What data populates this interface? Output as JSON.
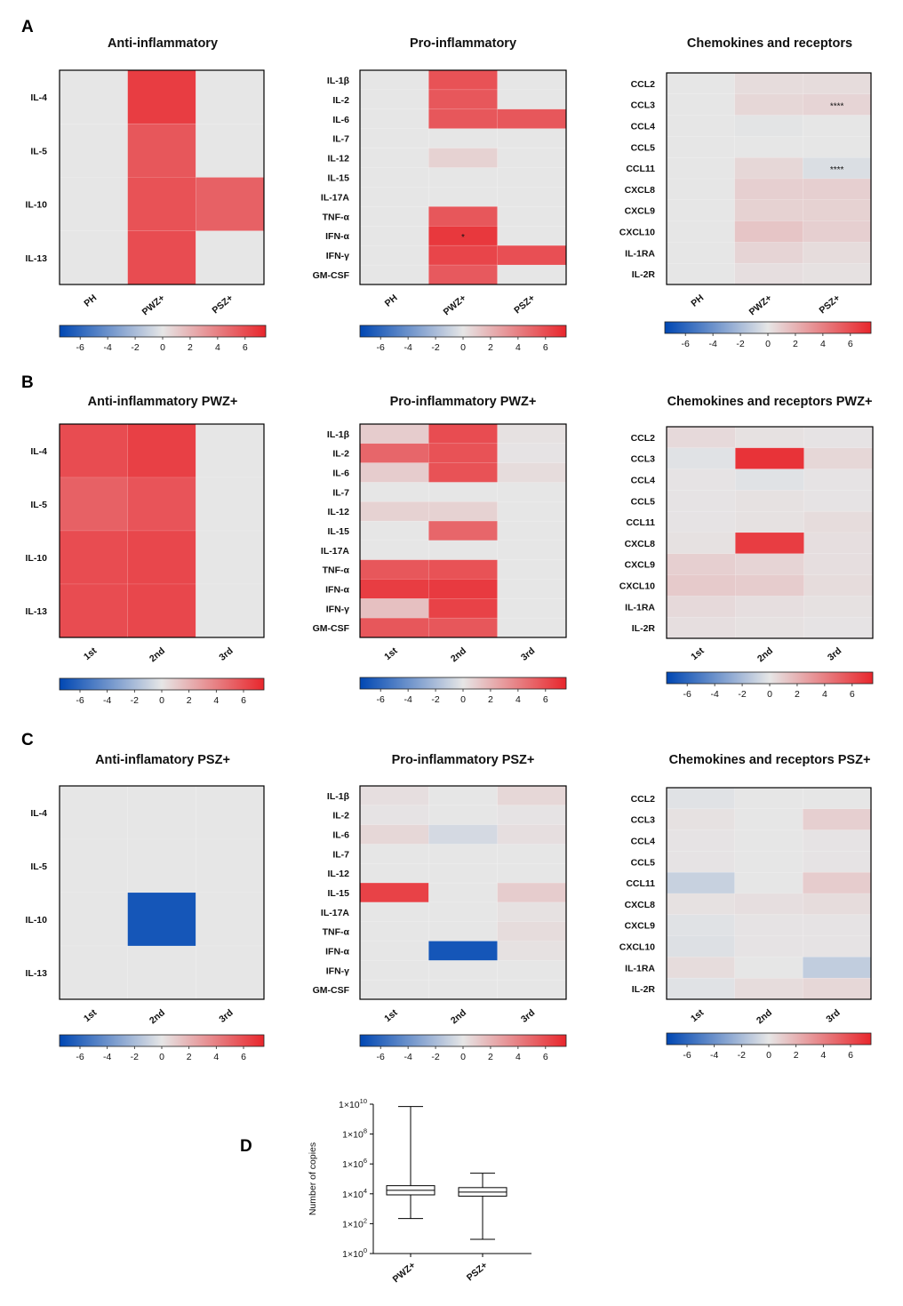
{
  "panel_labels": [
    "A",
    "B",
    "C",
    "D"
  ],
  "colorbar_ticks": [
    "-6",
    "-4",
    "-2",
    "0",
    "2",
    "4",
    "6"
  ],
  "colorscale": {
    "min": -7.5,
    "max": 7.5,
    "low": "#0047b3",
    "mid": "#e6e6e6",
    "high": "#e8262c"
  },
  "chart_data": [
    {
      "type": "heatmap",
      "panel": "A",
      "title": "Anti-inflammatory",
      "rows": [
        "IL-4",
        "IL-5",
        "IL-10",
        "IL-13"
      ],
      "columns": [
        "PH",
        "PWZ+",
        "PSZ+"
      ],
      "values": [
        [
          0,
          6.6,
          0
        ],
        [
          0,
          5.6,
          0
        ],
        [
          0,
          5.8,
          5.2
        ],
        [
          0,
          6.0,
          0
        ]
      ],
      "annotations": []
    },
    {
      "type": "heatmap",
      "panel": "A",
      "title": "Pro-inflammatory",
      "rows": [
        "IL-1β",
        "IL-2",
        "IL-6",
        "IL-7",
        "IL-12",
        "IL-15",
        "IL-17A",
        "TNF-α",
        "IFN-α",
        "IFN-γ",
        "GM-CSF"
      ],
      "columns": [
        "PH",
        "PWZ+",
        "PSZ+"
      ],
      "values": [
        [
          0,
          5.8,
          0
        ],
        [
          0,
          5.6,
          0
        ],
        [
          0,
          5.6,
          5.6
        ],
        [
          0,
          0,
          0
        ],
        [
          0,
          0.8,
          0
        ],
        [
          0,
          0,
          0
        ],
        [
          0,
          0,
          0
        ],
        [
          0,
          5.6,
          0
        ],
        [
          0,
          6.8,
          0
        ],
        [
          0,
          6.3,
          5.9
        ],
        [
          0,
          5.5,
          0
        ]
      ],
      "annotations": [
        {
          "row": 8,
          "col": 1,
          "text": "*"
        }
      ]
    },
    {
      "type": "heatmap",
      "panel": "A",
      "title": "Chemokines and receptors",
      "rows": [
        "CCL2",
        "CCL3",
        "CCL4",
        "CCL5",
        "CCL11",
        "CXCL8",
        "CXCL9",
        "CXCL10",
        "IL-1RA",
        "IL-2R"
      ],
      "columns": [
        "PH",
        "PWZ+",
        "PSZ+"
      ],
      "values": [
        [
          0,
          0.4,
          0.4
        ],
        [
          0,
          0.6,
          0.7
        ],
        [
          0,
          -0.1,
          0
        ],
        [
          0,
          0,
          0
        ],
        [
          0,
          0.6,
          -0.4
        ],
        [
          0,
          0.9,
          0.9
        ],
        [
          0,
          0.8,
          0.8
        ],
        [
          0,
          1.3,
          0.9
        ],
        [
          0,
          0.7,
          0.4
        ],
        [
          0,
          0.3,
          0.2
        ]
      ],
      "annotations": [
        {
          "row": 1,
          "col": 2,
          "text": "****"
        },
        {
          "row": 4,
          "col": 2,
          "text": "****"
        }
      ]
    },
    {
      "type": "heatmap",
      "panel": "B",
      "title": "Anti-inflammatory PWZ+",
      "rows": [
        "IL-4",
        "IL-5",
        "IL-10",
        "IL-13"
      ],
      "columns": [
        "1st",
        "2nd",
        "3rd"
      ],
      "values": [
        [
          6.0,
          6.5,
          0
        ],
        [
          5.2,
          5.7,
          0
        ],
        [
          6.0,
          6.2,
          0
        ],
        [
          6.0,
          6.2,
          0
        ]
      ],
      "annotations": []
    },
    {
      "type": "heatmap",
      "panel": "B",
      "title": "Pro-inflammatory PWZ+",
      "rows": [
        "IL-1β",
        "IL-2",
        "IL-6",
        "IL-7",
        "IL-12",
        "IL-15",
        "IL-17A",
        "TNF-α",
        "IFN-α",
        "IFN-γ",
        "GM-CSF"
      ],
      "columns": [
        "1st",
        "2nd",
        "3rd"
      ],
      "values": [
        [
          1.0,
          6.0,
          0.2
        ],
        [
          5.0,
          5.8,
          0.1
        ],
        [
          1.0,
          5.8,
          0.4
        ],
        [
          0,
          0,
          0
        ],
        [
          0.8,
          0.8,
          0
        ],
        [
          0,
          5.0,
          0
        ],
        [
          0,
          0,
          0
        ],
        [
          5.6,
          5.8,
          0
        ],
        [
          6.6,
          6.7,
          0
        ],
        [
          1.5,
          6.4,
          0
        ],
        [
          5.6,
          5.6,
          0
        ]
      ],
      "annotations": []
    },
    {
      "type": "heatmap",
      "panel": "B",
      "title": "Chemokines and receptors PWZ+",
      "rows": [
        "CCL2",
        "CCL3",
        "CCL4",
        "CCL5",
        "CCL11",
        "CXCL8",
        "CXCL9",
        "CXCL10",
        "IL-1RA",
        "IL-2R"
      ],
      "columns": [
        "1st",
        "2nd",
        "3rd"
      ],
      "values": [
        [
          0.5,
          0.2,
          0.1
        ],
        [
          -0.2,
          7.0,
          0.6
        ],
        [
          0.1,
          -0.2,
          0.1
        ],
        [
          0.1,
          0.2,
          0.1
        ],
        [
          0.1,
          0.2,
          0.4
        ],
        [
          0.2,
          6.6,
          0.3
        ],
        [
          0.9,
          0.7,
          0.3
        ],
        [
          1.1,
          1.0,
          0.4
        ],
        [
          0.5,
          0.3,
          0.2
        ],
        [
          0.3,
          0.2,
          0.1
        ]
      ],
      "annotations": []
    },
    {
      "type": "heatmap",
      "panel": "C",
      "title": "Anti-inflamatory PSZ+",
      "rows": [
        "IL-4",
        "IL-5",
        "IL-10",
        "IL-13"
      ],
      "columns": [
        "1st",
        "2nd",
        "3rd"
      ],
      "values": [
        [
          0,
          0,
          0
        ],
        [
          0,
          0,
          0
        ],
        [
          0,
          -6.8,
          0
        ],
        [
          0,
          0,
          0
        ]
      ],
      "annotations": []
    },
    {
      "type": "heatmap",
      "panel": "C",
      "title": "Pro-inflammatory PSZ+",
      "rows": [
        "IL-1β",
        "IL-2",
        "IL-6",
        "IL-7",
        "IL-12",
        "IL-15",
        "IL-17A",
        "TNF-α",
        "IFN-α",
        "IFN-γ",
        "GM-CSF"
      ],
      "columns": [
        "1st",
        "2nd",
        "3rd"
      ],
      "values": [
        [
          0.3,
          0,
          0.6
        ],
        [
          0.1,
          0,
          0.1
        ],
        [
          0.6,
          -0.6,
          0.3
        ],
        [
          0,
          0,
          0
        ],
        [
          0,
          0,
          0
        ],
        [
          6.4,
          0,
          1.0
        ],
        [
          0,
          0,
          0.2
        ],
        [
          0,
          0,
          0.4
        ],
        [
          0,
          -6.8,
          0.2
        ],
        [
          0,
          0,
          0
        ],
        [
          0,
          0,
          0
        ]
      ],
      "annotations": []
    },
    {
      "type": "heatmap",
      "panel": "C",
      "title": "Chemokines and receptors PSZ+",
      "rows": [
        "CCL2",
        "CCL3",
        "CCL4",
        "CCL5",
        "CCL11",
        "CXCL8",
        "CXCL9",
        "CXCL10",
        "IL-1RA",
        "IL-2R"
      ],
      "columns": [
        "1st",
        "2nd",
        "3rd"
      ],
      "values": [
        [
          -0.2,
          0,
          0
        ],
        [
          0.2,
          0,
          0.9
        ],
        [
          0.1,
          0,
          0.1
        ],
        [
          0.1,
          0,
          0.1
        ],
        [
          -1.0,
          0,
          1.0
        ],
        [
          0.2,
          0.3,
          0.4
        ],
        [
          -0.2,
          0.1,
          0.1
        ],
        [
          -0.3,
          0.1,
          0.1
        ],
        [
          0.4,
          0,
          -1.2
        ],
        [
          -0.2,
          0.4,
          0.6
        ]
      ],
      "annotations": []
    },
    {
      "type": "box",
      "panel": "D",
      "ylabel": "Number of copies",
      "yscale": "log",
      "ylim": [
        1,
        10000000000
      ],
      "yticks": [
        {
          "value": 1,
          "base": "1×10",
          "exp": "0"
        },
        {
          "value": 100,
          "base": "1×10",
          "exp": "2"
        },
        {
          "value": 10000,
          "base": "1×10",
          "exp": "4"
        },
        {
          "value": 1000000,
          "base": "1×10",
          "exp": "6"
        },
        {
          "value": 100000000,
          "base": "1×10",
          "exp": "8"
        },
        {
          "value": 10000000000,
          "base": "1×10",
          "exp": "10"
        }
      ],
      "categories": [
        "PWZ+",
        "PSZ+"
      ],
      "boxes": [
        {
          "min": 220,
          "q1": 8500,
          "median": 17000,
          "q3": 35000,
          "max": 7000000000
        },
        {
          "min": 9,
          "q1": 7000,
          "median": 13000,
          "q3": 26000,
          "max": 240000
        }
      ]
    }
  ]
}
